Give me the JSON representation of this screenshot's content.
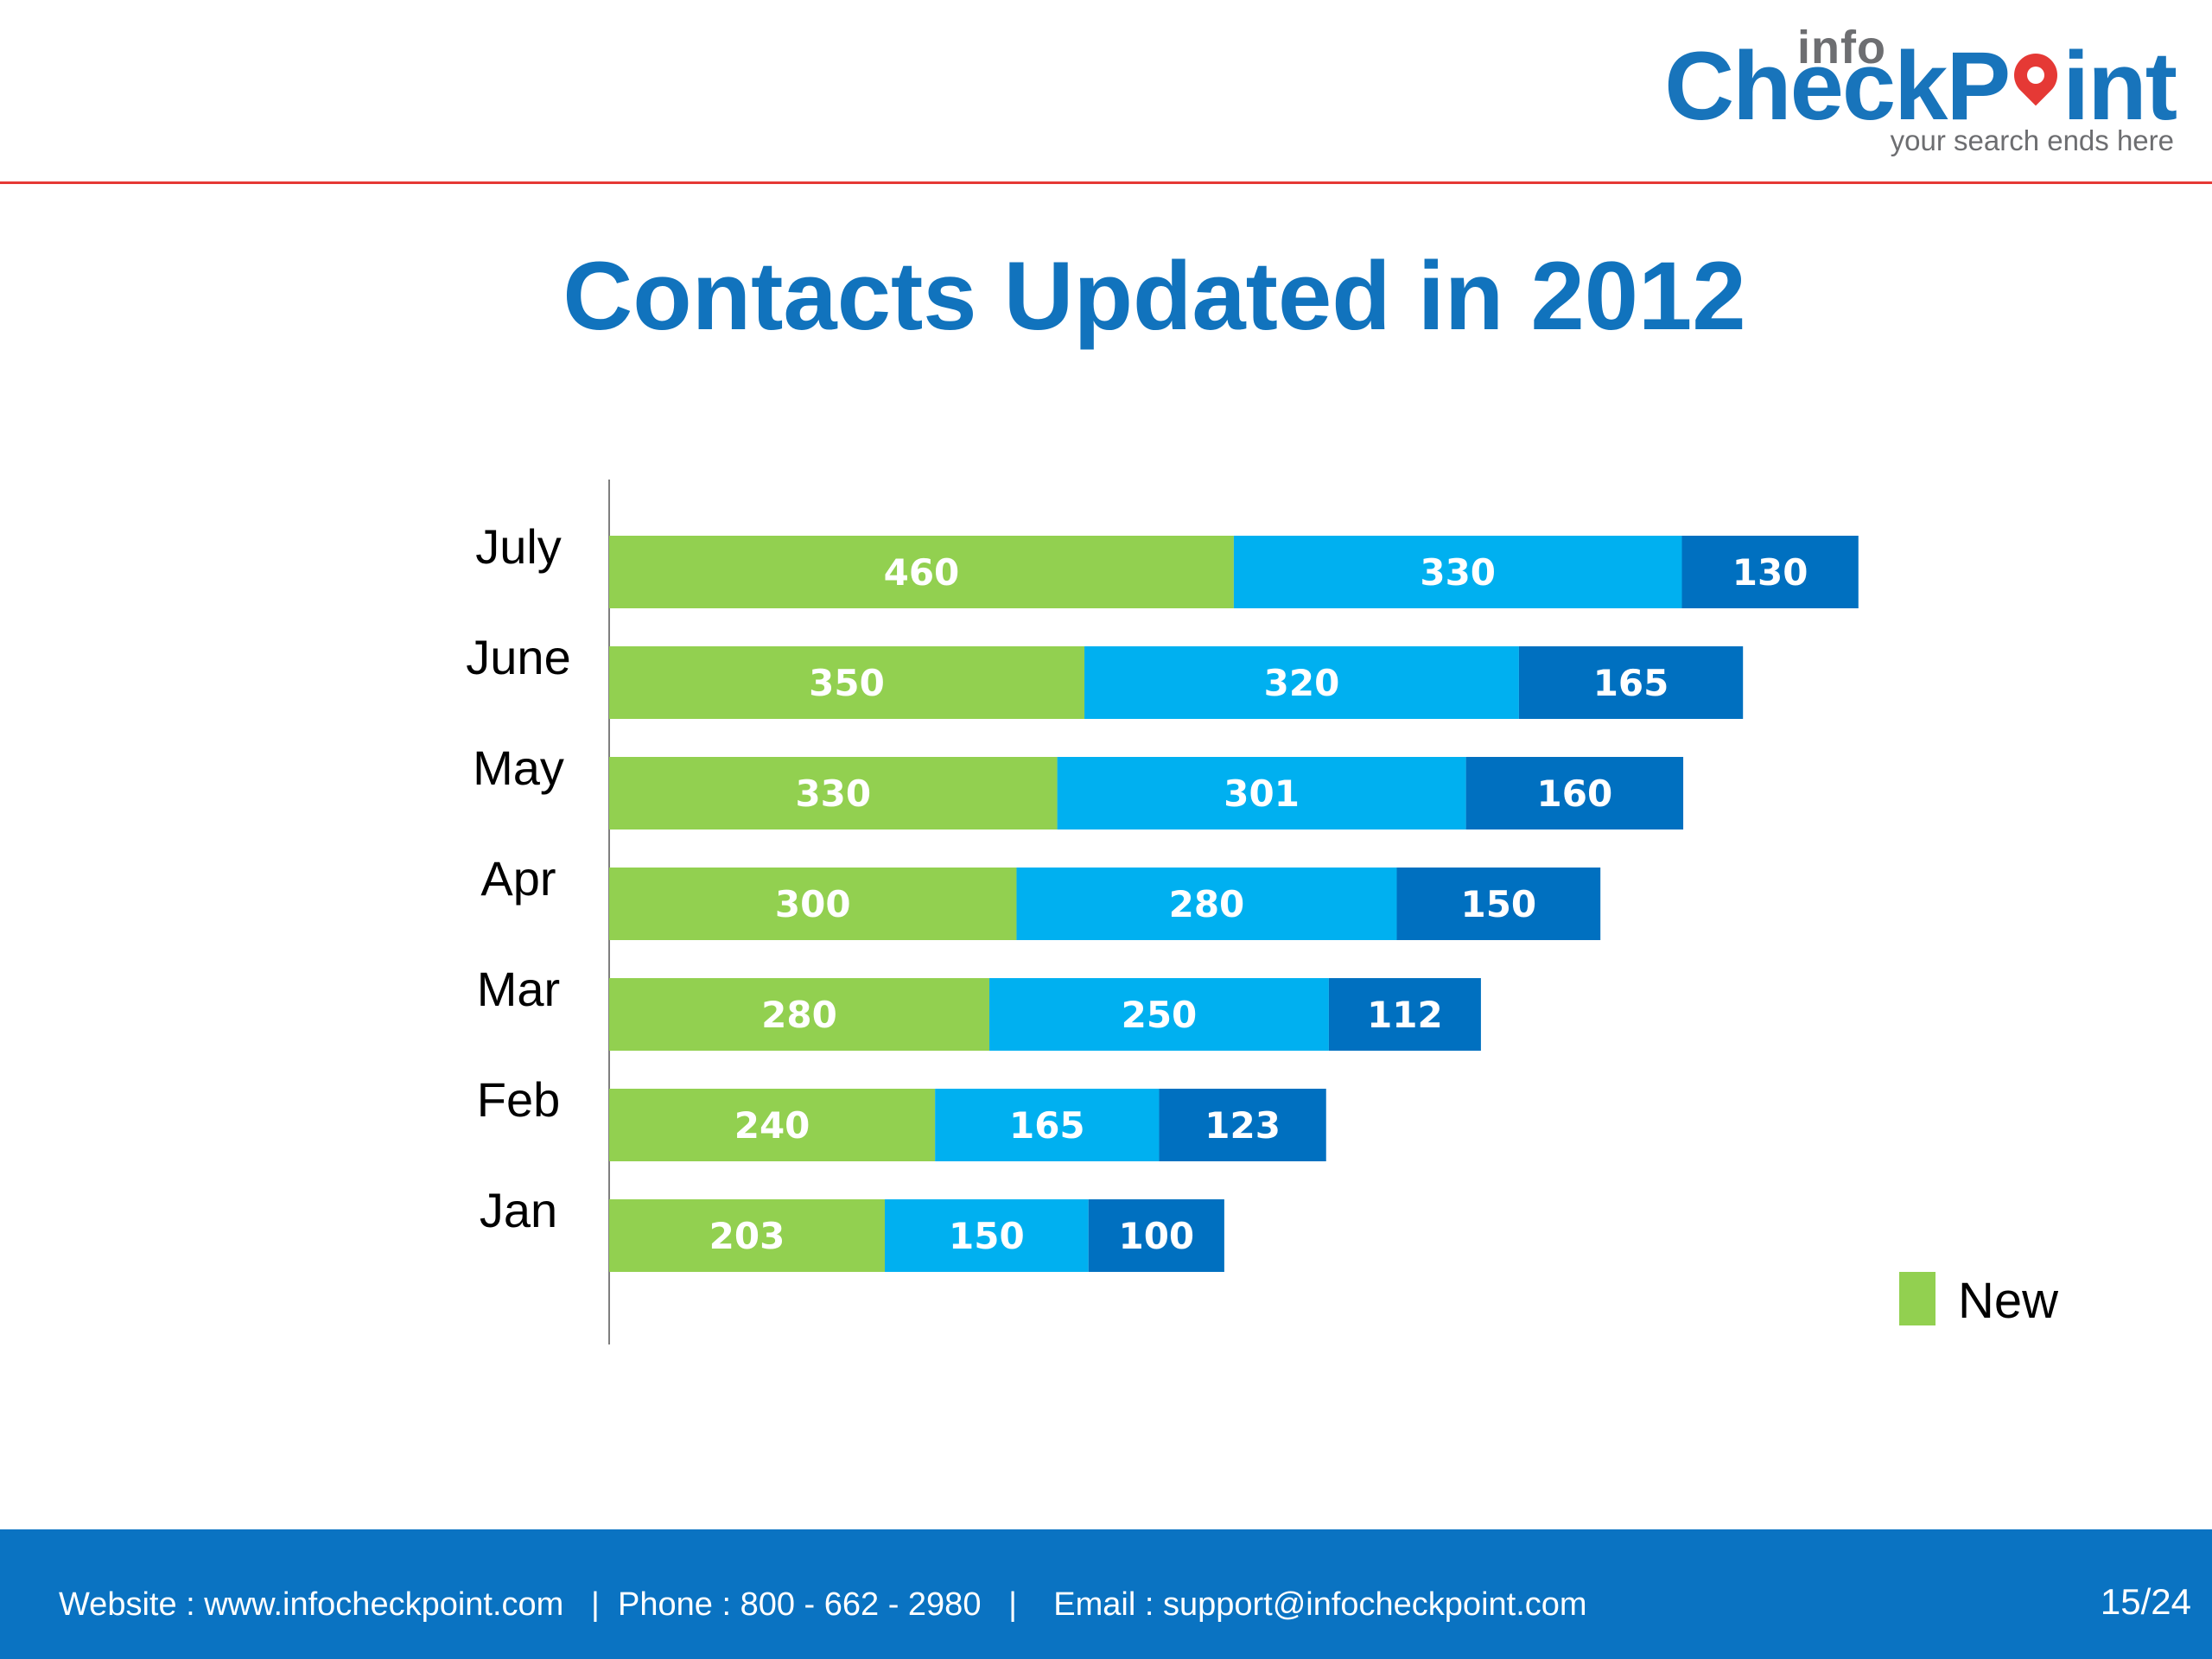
{
  "logo": {
    "info": "info",
    "main_left": "CheckP",
    "main_right": "int",
    "tagline": "your search ends here"
  },
  "title": "Contacts Updated in 2012",
  "chart_data": {
    "type": "bar",
    "orientation": "horizontal",
    "stacked": true,
    "categories": [
      "July",
      "June",
      "May",
      "Apr",
      "Mar",
      "Feb",
      "Jan"
    ],
    "series": [
      {
        "name": "New",
        "color": "#92d050",
        "values": [
          460,
          350,
          330,
          300,
          280,
          240,
          203
        ]
      },
      {
        "color": "#00b0f0",
        "values": [
          330,
          320,
          301,
          280,
          250,
          165,
          150
        ]
      },
      {
        "color": "#0070c0",
        "values": [
          130,
          165,
          160,
          150,
          112,
          123,
          100
        ]
      }
    ],
    "legend": {
      "position": "bottom-right",
      "entries": [
        "New"
      ]
    },
    "grid": false,
    "axis": {
      "show_value_axis": false
    }
  },
  "footer": {
    "website": "Website : www.infocheckpoint.com",
    "phone": "Phone : 800 - 662 - 2980",
    "email": "Email : support@infocheckpoint.com",
    "page": "15/24",
    "separator": "|"
  },
  "colors": {
    "brand_blue": "#1173bd",
    "footer_blue": "#0a73c2",
    "accent_red": "#e53935"
  }
}
